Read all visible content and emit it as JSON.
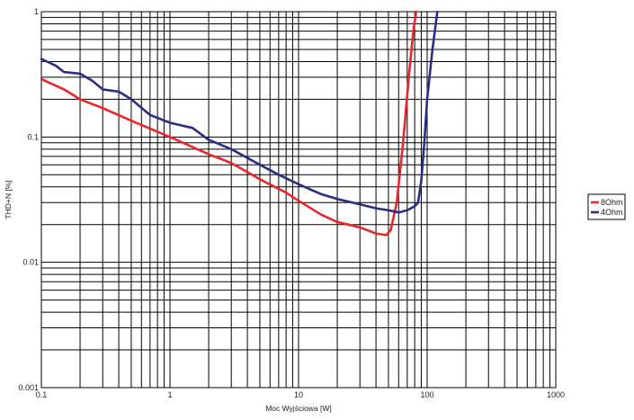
{
  "chart_data": {
    "type": "line",
    "title": "",
    "xlabel": "Moc Wyjściowa [W]",
    "ylabel": "THD+N [%]",
    "xscale": "log",
    "yscale": "log",
    "xlim": [
      0.1,
      1000
    ],
    "ylim": [
      0.001,
      1
    ],
    "grid": true,
    "legend_position": "right",
    "x_ticks": [
      "0.1",
      "1",
      "10",
      "100",
      "1000"
    ],
    "y_ticks": [
      "0.001",
      "0.01",
      "0.1",
      "1"
    ],
    "series": [
      {
        "name": "8Ohm",
        "color": "#e8262b",
        "x": [
          0.1,
          0.15,
          0.2,
          0.3,
          0.5,
          1,
          2,
          3,
          5,
          8,
          10,
          15,
          20,
          30,
          40,
          48,
          52,
          58,
          65,
          72,
          78,
          82
        ],
        "y": [
          0.29,
          0.24,
          0.2,
          0.17,
          0.135,
          0.1,
          0.073,
          0.062,
          0.046,
          0.036,
          0.031,
          0.024,
          0.021,
          0.019,
          0.017,
          0.0165,
          0.018,
          0.03,
          0.09,
          0.3,
          0.7,
          1.0
        ]
      },
      {
        "name": "4Ohm",
        "color": "#2b2d86",
        "x": [
          0.1,
          0.13,
          0.15,
          0.2,
          0.25,
          0.3,
          0.4,
          0.5,
          0.7,
          1,
          1.5,
          2,
          3,
          5,
          7,
          10,
          15,
          20,
          30,
          40,
          50,
          60,
          70,
          80,
          85,
          90,
          95,
          100,
          110,
          120
        ],
        "y": [
          0.42,
          0.37,
          0.33,
          0.32,
          0.28,
          0.24,
          0.23,
          0.2,
          0.15,
          0.13,
          0.118,
          0.095,
          0.08,
          0.06,
          0.05,
          0.042,
          0.035,
          0.032,
          0.029,
          0.027,
          0.026,
          0.025,
          0.026,
          0.028,
          0.03,
          0.045,
          0.09,
          0.2,
          0.5,
          1.0
        ]
      }
    ]
  }
}
